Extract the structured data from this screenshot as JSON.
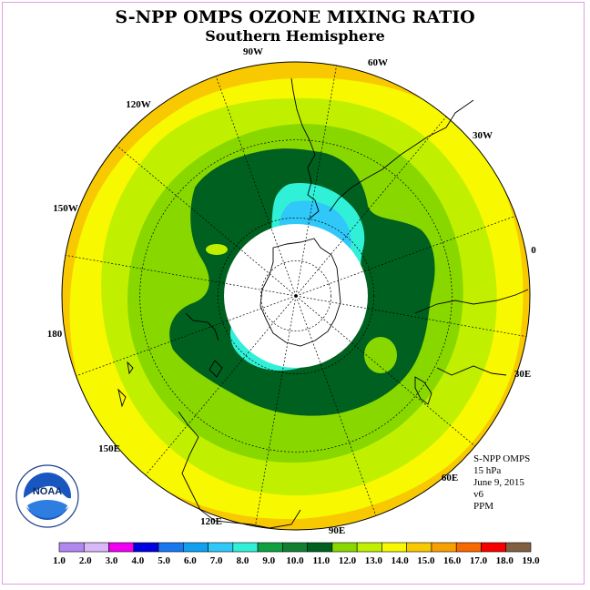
{
  "title": "S-NPP OMPS OZONE MIXING RATIO",
  "subtitle": "Southern Hemisphere",
  "info": {
    "instrument": "S-NPP OMPS",
    "level": "15 hPa",
    "date": "June 9, 2015",
    "version": "v6",
    "units": "PPM"
  },
  "logo": {
    "text": "NOAA",
    "icon": "noaa-logo-icon"
  },
  "longitude_labels": [
    "90W",
    "60W",
    "30W",
    "0",
    "30E",
    "60E",
    "90E",
    "120E",
    "150E",
    "180",
    "150W",
    "120W"
  ],
  "color_scale": {
    "labels": [
      "1.0",
      "2.0",
      "3.0",
      "4.0",
      "5.0",
      "6.0",
      "7.0",
      "8.0",
      "9.0",
      "10.0",
      "11.0",
      "12.0",
      "13.0",
      "14.0",
      "15.0",
      "16.0",
      "17.0",
      "18.0",
      "19.0"
    ],
    "colors": [
      "#b088f0",
      "#d8b8f8",
      "#f000f0",
      "#0000e0",
      "#1878f0",
      "#10a0f0",
      "#30c8f8",
      "#30f0d8",
      "#10a040",
      "#108030",
      "#006020",
      "#88d800",
      "#c0f000",
      "#f8f800",
      "#f8c800",
      "#f8a000",
      "#f86800",
      "#f80000",
      "#806040"
    ]
  },
  "map_colors": {
    "ocean_edge": "#f8c800",
    "band_yellow": "#f8f800",
    "band_lime": "#c0f000",
    "band_green": "#88d800",
    "band_dark_green": "#006020",
    "band_cyan": "#30f0d8",
    "band_blue": "#30c8f8",
    "polar_night": "#ffffff"
  }
}
